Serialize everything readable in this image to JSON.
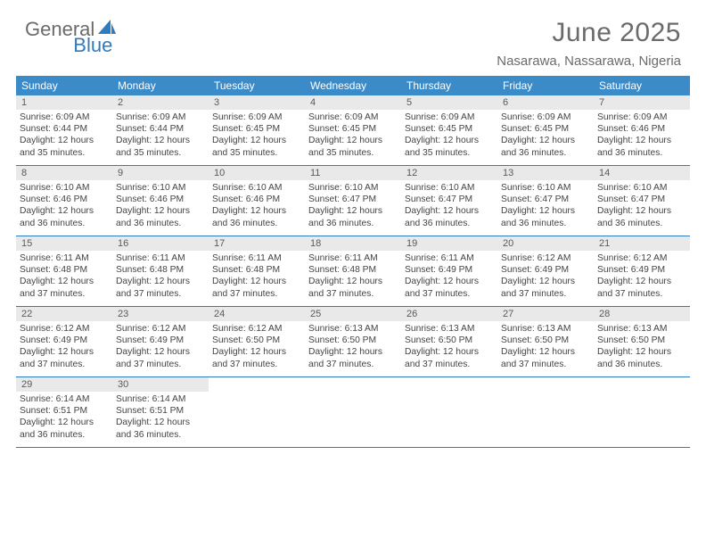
{
  "logo": {
    "text1": "General",
    "text2": "Blue"
  },
  "title": "June 2025",
  "location": "Nasarawa, Nassarawa, Nigeria",
  "colors": {
    "header_bg": "#3b8bc8",
    "header_text": "#ffffff",
    "border": "#2f7bbf",
    "daynum_bg": "#e9e9e9",
    "body_text": "#444444",
    "title_text": "#6b6b6b"
  },
  "weekdays": [
    "Sunday",
    "Monday",
    "Tuesday",
    "Wednesday",
    "Thursday",
    "Friday",
    "Saturday"
  ],
  "weeks": [
    [
      {
        "n": "1",
        "sr": "Sunrise: 6:09 AM",
        "ss": "Sunset: 6:44 PM",
        "dl1": "Daylight: 12 hours",
        "dl2": "and 35 minutes."
      },
      {
        "n": "2",
        "sr": "Sunrise: 6:09 AM",
        "ss": "Sunset: 6:44 PM",
        "dl1": "Daylight: 12 hours",
        "dl2": "and 35 minutes."
      },
      {
        "n": "3",
        "sr": "Sunrise: 6:09 AM",
        "ss": "Sunset: 6:45 PM",
        "dl1": "Daylight: 12 hours",
        "dl2": "and 35 minutes."
      },
      {
        "n": "4",
        "sr": "Sunrise: 6:09 AM",
        "ss": "Sunset: 6:45 PM",
        "dl1": "Daylight: 12 hours",
        "dl2": "and 35 minutes."
      },
      {
        "n": "5",
        "sr": "Sunrise: 6:09 AM",
        "ss": "Sunset: 6:45 PM",
        "dl1": "Daylight: 12 hours",
        "dl2": "and 35 minutes."
      },
      {
        "n": "6",
        "sr": "Sunrise: 6:09 AM",
        "ss": "Sunset: 6:45 PM",
        "dl1": "Daylight: 12 hours",
        "dl2": "and 36 minutes."
      },
      {
        "n": "7",
        "sr": "Sunrise: 6:09 AM",
        "ss": "Sunset: 6:46 PM",
        "dl1": "Daylight: 12 hours",
        "dl2": "and 36 minutes."
      }
    ],
    [
      {
        "n": "8",
        "sr": "Sunrise: 6:10 AM",
        "ss": "Sunset: 6:46 PM",
        "dl1": "Daylight: 12 hours",
        "dl2": "and 36 minutes."
      },
      {
        "n": "9",
        "sr": "Sunrise: 6:10 AM",
        "ss": "Sunset: 6:46 PM",
        "dl1": "Daylight: 12 hours",
        "dl2": "and 36 minutes."
      },
      {
        "n": "10",
        "sr": "Sunrise: 6:10 AM",
        "ss": "Sunset: 6:46 PM",
        "dl1": "Daylight: 12 hours",
        "dl2": "and 36 minutes."
      },
      {
        "n": "11",
        "sr": "Sunrise: 6:10 AM",
        "ss": "Sunset: 6:47 PM",
        "dl1": "Daylight: 12 hours",
        "dl2": "and 36 minutes."
      },
      {
        "n": "12",
        "sr": "Sunrise: 6:10 AM",
        "ss": "Sunset: 6:47 PM",
        "dl1": "Daylight: 12 hours",
        "dl2": "and 36 minutes."
      },
      {
        "n": "13",
        "sr": "Sunrise: 6:10 AM",
        "ss": "Sunset: 6:47 PM",
        "dl1": "Daylight: 12 hours",
        "dl2": "and 36 minutes."
      },
      {
        "n": "14",
        "sr": "Sunrise: 6:10 AM",
        "ss": "Sunset: 6:47 PM",
        "dl1": "Daylight: 12 hours",
        "dl2": "and 36 minutes."
      }
    ],
    [
      {
        "n": "15",
        "sr": "Sunrise: 6:11 AM",
        "ss": "Sunset: 6:48 PM",
        "dl1": "Daylight: 12 hours",
        "dl2": "and 37 minutes."
      },
      {
        "n": "16",
        "sr": "Sunrise: 6:11 AM",
        "ss": "Sunset: 6:48 PM",
        "dl1": "Daylight: 12 hours",
        "dl2": "and 37 minutes."
      },
      {
        "n": "17",
        "sr": "Sunrise: 6:11 AM",
        "ss": "Sunset: 6:48 PM",
        "dl1": "Daylight: 12 hours",
        "dl2": "and 37 minutes."
      },
      {
        "n": "18",
        "sr": "Sunrise: 6:11 AM",
        "ss": "Sunset: 6:48 PM",
        "dl1": "Daylight: 12 hours",
        "dl2": "and 37 minutes."
      },
      {
        "n": "19",
        "sr": "Sunrise: 6:11 AM",
        "ss": "Sunset: 6:49 PM",
        "dl1": "Daylight: 12 hours",
        "dl2": "and 37 minutes."
      },
      {
        "n": "20",
        "sr": "Sunrise: 6:12 AM",
        "ss": "Sunset: 6:49 PM",
        "dl1": "Daylight: 12 hours",
        "dl2": "and 37 minutes."
      },
      {
        "n": "21",
        "sr": "Sunrise: 6:12 AM",
        "ss": "Sunset: 6:49 PM",
        "dl1": "Daylight: 12 hours",
        "dl2": "and 37 minutes."
      }
    ],
    [
      {
        "n": "22",
        "sr": "Sunrise: 6:12 AM",
        "ss": "Sunset: 6:49 PM",
        "dl1": "Daylight: 12 hours",
        "dl2": "and 37 minutes."
      },
      {
        "n": "23",
        "sr": "Sunrise: 6:12 AM",
        "ss": "Sunset: 6:49 PM",
        "dl1": "Daylight: 12 hours",
        "dl2": "and 37 minutes."
      },
      {
        "n": "24",
        "sr": "Sunrise: 6:12 AM",
        "ss": "Sunset: 6:50 PM",
        "dl1": "Daylight: 12 hours",
        "dl2": "and 37 minutes."
      },
      {
        "n": "25",
        "sr": "Sunrise: 6:13 AM",
        "ss": "Sunset: 6:50 PM",
        "dl1": "Daylight: 12 hours",
        "dl2": "and 37 minutes."
      },
      {
        "n": "26",
        "sr": "Sunrise: 6:13 AM",
        "ss": "Sunset: 6:50 PM",
        "dl1": "Daylight: 12 hours",
        "dl2": "and 37 minutes."
      },
      {
        "n": "27",
        "sr": "Sunrise: 6:13 AM",
        "ss": "Sunset: 6:50 PM",
        "dl1": "Daylight: 12 hours",
        "dl2": "and 37 minutes."
      },
      {
        "n": "28",
        "sr": "Sunrise: 6:13 AM",
        "ss": "Sunset: 6:50 PM",
        "dl1": "Daylight: 12 hours",
        "dl2": "and 36 minutes."
      }
    ],
    [
      {
        "n": "29",
        "sr": "Sunrise: 6:14 AM",
        "ss": "Sunset: 6:51 PM",
        "dl1": "Daylight: 12 hours",
        "dl2": "and 36 minutes."
      },
      {
        "n": "30",
        "sr": "Sunrise: 6:14 AM",
        "ss": "Sunset: 6:51 PM",
        "dl1": "Daylight: 12 hours",
        "dl2": "and 36 minutes."
      },
      null,
      null,
      null,
      null,
      null
    ]
  ]
}
